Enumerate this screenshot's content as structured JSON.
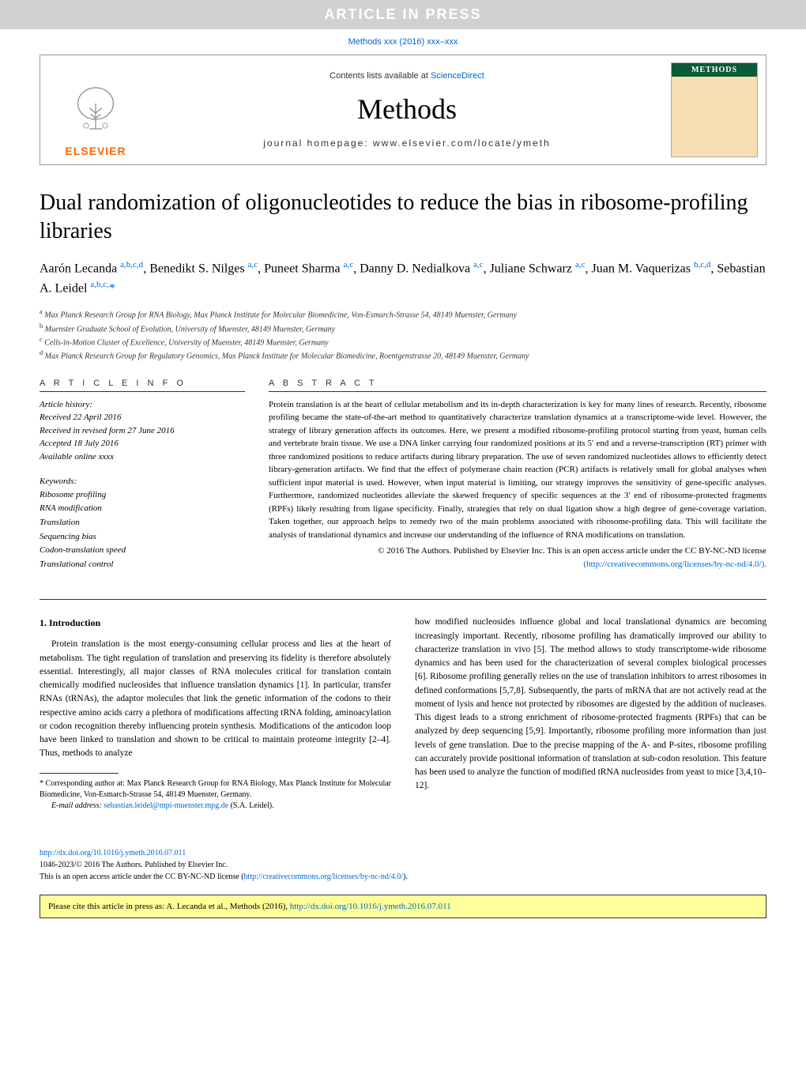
{
  "banner": "ARTICLE IN PRESS",
  "citation_header": "Methods xxx (2016) xxx–xxx",
  "header": {
    "contents_prefix": "Contents lists available at ",
    "contents_link": "ScienceDirect",
    "journal_name": "Methods",
    "homepage_prefix": "journal homepage: ",
    "homepage_url": "www.elsevier.com/locate/ymeth",
    "elsevier_label": "ELSEVIER",
    "cover_label": "METHODS"
  },
  "title": "Dual randomization of oligonucleotides to reduce the bias in ribosome-profiling libraries",
  "authors_html": "Aarón Lecanda <sup>a,b,c,d</sup>, Benedikt S. Nilges <sup>a,c</sup>, Puneet Sharma <sup>a,c</sup>, Danny D. Nedialkova <sup>a,c</sup>, Juliane Schwarz <sup>a,c</sup>, Juan M. Vaquerizas <sup>b,c,d</sup>, Sebastian A. Leidel <sup>a,b,c,</sup><span class=\"star\">*</span>",
  "affiliations": [
    "a Max Planck Research Group for RNA Biology, Max Planck Institute for Molecular Biomedicine, Von-Esmarch-Strasse 54, 48149 Muenster, Germany",
    "b Muenster Graduate School of Evolution, University of Muenster, 48149 Muenster, Germany",
    "c Cells-in-Motion Cluster of Excellence, University of Muenster, 48149 Muenster, Germany",
    "d Max Planck Research Group for Regulatory Genomics, Max Planck Institute for Molecular Biomedicine, Roentgenstrasse 20, 48149 Muenster, Germany"
  ],
  "article_info": {
    "label": "A R T I C L E   I N F O",
    "history_label": "Article history:",
    "history": [
      "Received 22 April 2016",
      "Received in revised form 27 June 2016",
      "Accepted 18 July 2016",
      "Available online xxxx"
    ],
    "keywords_label": "Keywords:",
    "keywords": [
      "Ribosome profiling",
      "RNA modification",
      "Translation",
      "Sequencing bias",
      "Codon-translation speed",
      "Translational control"
    ]
  },
  "abstract": {
    "label": "A B S T R A C T",
    "text": "Protein translation is at the heart of cellular metabolism and its in-depth characterization is key for many lines of research. Recently, ribosome profiling became the state-of-the-art method to quantitatively characterize translation dynamics at a transcriptome-wide level. However, the strategy of library generation affects its outcomes. Here, we present a modified ribosome-profiling protocol starting from yeast, human cells and vertebrate brain tissue. We use a DNA linker carrying four randomized positions at its 5′ end and a reverse-transcription (RT) primer with three randomized positions to reduce artifacts during library preparation. The use of seven randomized nucleotides allows to efficiently detect library-generation artifacts. We find that the effect of polymerase chain reaction (PCR) artifacts is relatively small for global analyses when sufficient input material is used. However, when input material is limiting, our strategy improves the sensitivity of gene-specific analyses. Furthermore, randomized nucleotides alleviate the skewed frequency of specific sequences at the 3′ end of ribosome-protected fragments (RPFs) likely resulting from ligase specificity. Finally, strategies that rely on dual ligation show a high degree of gene-coverage variation. Taken together, our approach helps to remedy two of the main problems associated with ribosome-profiling data. This will facilitate the analysis of translational dynamics and increase our understanding of the influence of RNA modifications on translation.",
    "copyright": "© 2016 The Authors. Published by Elsevier Inc. This is an open access article under the CC BY-NC-ND license",
    "license_url": "(http://creativecommons.org/licenses/by-nc-nd/4.0/)."
  },
  "body": {
    "heading": "1. Introduction",
    "col1_p1": "Protein translation is the most energy-consuming cellular process and lies at the heart of metabolism. The tight regulation of translation and preserving its fidelity is therefore absolutely essential. Interestingly, all major classes of RNA molecules critical for translation contain chemically modified nucleosides that influence translation dynamics [1]. In particular, transfer RNAs (tRNAs), the adaptor molecules that link the genetic information of the codons to their respective amino acids carry a plethora of modifications affecting tRNA folding, aminoacylation or codon recognition thereby influencing protein synthesis. Modifications of the anticodon loop have been linked to translation and shown to be critical to maintain proteome integrity [2–4]. Thus, methods to analyze",
    "col2_p1": "how modified nucleosides influence global and local translational dynamics are becoming increasingly important. Recently, ribosome profiling has dramatically improved our ability to characterize translation in vivo [5]. The method allows to study transcriptome-wide ribosome dynamics and has been used for the characterization of several complex biological processes [6]. Ribosome profiling generally relies on the use of translation inhibitors to arrest ribosomes in defined conformations [5,7,8]. Subsequently, the parts of mRNA that are not actively read at the moment of lysis and hence not protected by ribosomes are digested by the addition of nucleases. This digest leads to a strong enrichment of ribosome-protected fragments (RPFs) that can be analyzed by deep sequencing [5,9]. Importantly, ribosome profiling more information than just levels of gene translation. Due to the precise mapping of the A- and P-sites, ribosome profiling can accurately provide positional information of translation at sub-codon resolution. This feature has been used to analyze the function of modified tRNA nucleosides from yeast to mice [3,4,10–12]."
  },
  "footnote": {
    "corresponding": "* Corresponding author at: Max Planck Research Group for RNA Biology, Max Planck Institute for Molecular Biomedicine, Von-Esmarch-Strasse 54, 48149 Muenster, Germany.",
    "email_label": "E-mail address: ",
    "email": "sebastian.leidel@mpi-muenster.mpg.de",
    "email_suffix": " (S.A. Leidel)."
  },
  "doi": {
    "url": "http://dx.doi.org/10.1016/j.ymeth.2016.07.011",
    "issn_line": "1046-2023/© 2016 The Authors. Published by Elsevier Inc.",
    "license_line": "This is an open access article under the CC BY-NC-ND license (",
    "license_url": "http://creativecommons.org/licenses/by-nc-nd/4.0/",
    "license_close": ")."
  },
  "cite_footer": {
    "prefix": "Please cite this article in press as: A. Lecanda et al., Methods (2016), ",
    "url": "http://dx.doi.org/10.1016/j.ymeth.2016.07.011"
  },
  "colors": {
    "link": "#0066cc",
    "banner_bg": "#d1d1d1",
    "banner_text": "#ffffff",
    "elsevier_orange": "#ff6600",
    "footer_bg": "#ffff99",
    "cover_header": "#0a5c36"
  }
}
